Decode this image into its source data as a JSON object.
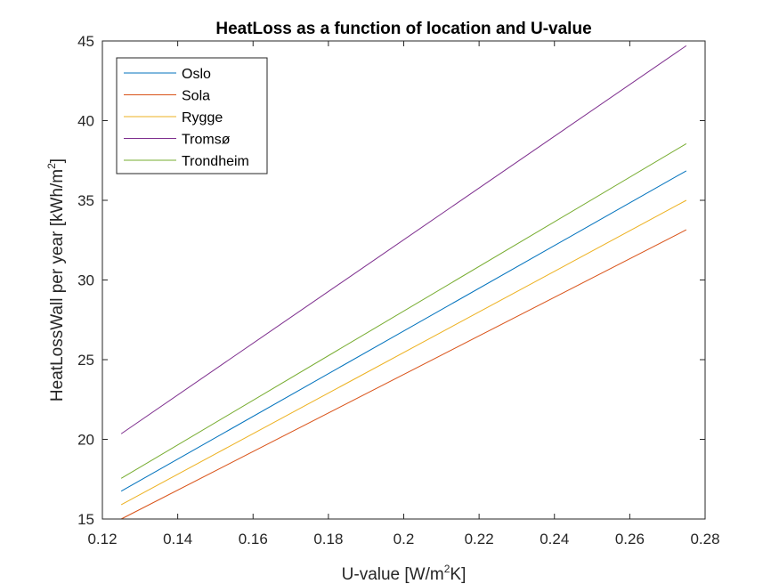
{
  "chart_data": {
    "type": "line",
    "title": "HeatLoss as a function of location and U-value",
    "xlabel": {
      "pre": "U-value [W/m",
      "sup": "2",
      "post": "K]"
    },
    "ylabel": {
      "pre": "HeatLossWall per year [kWh/m",
      "sup": "2",
      "post": "]"
    },
    "xlim": [
      0.12,
      0.28
    ],
    "ylim": [
      15,
      45
    ],
    "xticks": [
      0.12,
      0.14,
      0.16,
      0.18,
      0.2,
      0.22,
      0.24,
      0.26,
      0.28
    ],
    "xtick_labels": [
      "0.12",
      "0.14",
      "0.16",
      "0.18",
      "0.2",
      "0.22",
      "0.24",
      "0.26",
      "0.28"
    ],
    "yticks": [
      15,
      20,
      25,
      30,
      35,
      40,
      45
    ],
    "ytick_labels": [
      "15",
      "20",
      "25",
      "30",
      "35",
      "40",
      "45"
    ],
    "grid": false,
    "legend_position": "top-left",
    "series": [
      {
        "name": "Oslo",
        "color": "#0072BD",
        "x": [
          0.125,
          0.275
        ],
        "y": [
          16.75,
          36.85
        ]
      },
      {
        "name": "Sola",
        "color": "#D95319",
        "x": [
          0.125,
          0.275
        ],
        "y": [
          15.0,
          33.15
        ]
      },
      {
        "name": "Rygge",
        "color": "#EDB120",
        "x": [
          0.125,
          0.275
        ],
        "y": [
          15.9,
          35.0
        ]
      },
      {
        "name": "Tromsø",
        "color": "#7E2F8E",
        "x": [
          0.125,
          0.275
        ],
        "y": [
          20.35,
          44.7
        ]
      },
      {
        "name": "Trondheim",
        "color": "#77AC30",
        "x": [
          0.125,
          0.275
        ],
        "y": [
          17.55,
          38.55
        ]
      }
    ]
  }
}
